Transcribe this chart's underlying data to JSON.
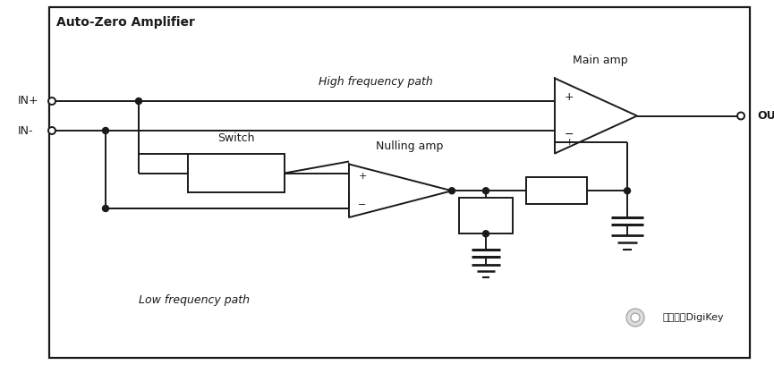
{
  "title": "Auto-Zero Amplifier",
  "bg_color": "#ffffff",
  "line_color": "#1a1a1a",
  "text_color": "#1a1a1a",
  "labels": {
    "title": "Auto-Zero Amplifier",
    "in_plus": "IN+",
    "in_minus": "IN-",
    "out": "OUT",
    "high_freq": "High frequency path",
    "low_freq": "Low frequency path",
    "main_amp": "Main amp",
    "switch": "Switch",
    "nulling_amp": "Nulling amp"
  },
  "figsize": [
    8.65,
    4.08
  ],
  "dpi": 100
}
